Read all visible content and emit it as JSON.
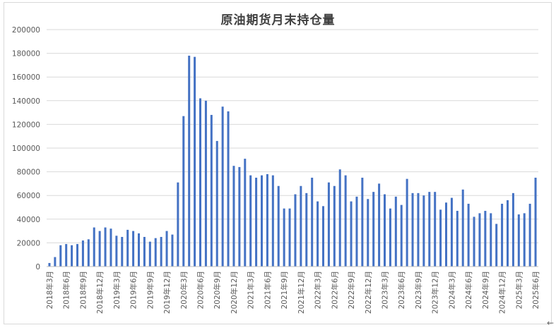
{
  "chart_data": {
    "type": "bar",
    "title": "原油期货月末持仓量",
    "xlabel": "",
    "ylabel": "",
    "ylim": [
      0,
      200000
    ],
    "yticks": [
      0,
      20000,
      40000,
      60000,
      80000,
      100000,
      120000,
      140000,
      160000,
      180000,
      200000
    ],
    "grid": true,
    "legend": "none",
    "bar_color": "#4472c4",
    "categories": [
      "2018年3月",
      "2018年4月",
      "2018年5月",
      "2018年6月",
      "2018年7月",
      "2018年8月",
      "2018年9月",
      "2018年10月",
      "2018年11月",
      "2018年12月",
      "2019年1月",
      "2019年2月",
      "2019年3月",
      "2019年4月",
      "2019年5月",
      "2019年6月",
      "2019年7月",
      "2019年8月",
      "2019年9月",
      "2019年10月",
      "2019年11月",
      "2019年12月",
      "2020年1月",
      "2020年2月",
      "2020年3月",
      "2020年4月",
      "2020年5月",
      "2020年6月",
      "2020年7月",
      "2020年8月",
      "2020年9月",
      "2020年10月",
      "2020年11月",
      "2020年12月",
      "2021年1月",
      "2021年2月",
      "2021年3月",
      "2021年4月",
      "2021年5月",
      "2021年6月",
      "2021年7月",
      "2021年8月",
      "2021年9月",
      "2021年10月",
      "2021年11月",
      "2021年12月",
      "2022年1月",
      "2022年2月",
      "2022年3月",
      "2022年4月",
      "2022年5月",
      "2022年6月",
      "2022年7月",
      "2022年8月",
      "2022年9月",
      "2022年10月",
      "2022年11月",
      "2022年12月",
      "2023年1月",
      "2023年2月",
      "2023年3月",
      "2023年4月",
      "2023年5月",
      "2023年6月",
      "2023年7月",
      "2023年8月",
      "2023年9月",
      "2023年10月",
      "2023年11月",
      "2023年12月",
      "2024年1月",
      "2024年2月",
      "2024年3月",
      "2024年4月",
      "2024年5月",
      "2024年6月",
      "2024年7月",
      "2024年8月",
      "2024年9月",
      "2024年10月",
      "2024年11月",
      "2024年12月",
      "2025年1月",
      "2025年2月",
      "2025年3月",
      "2025年4月",
      "2025年5月",
      "2025年6月"
    ],
    "tick_labels": [
      "2018年3月",
      "2018年6月",
      "2018年9月",
      "2018年12月",
      "2019年3月",
      "2019年6月",
      "2019年9月",
      "2019年12月",
      "2020年3月",
      "2020年6月",
      "2020年9月",
      "2020年12月",
      "2021年3月",
      "2021年6月",
      "2021年9月",
      "2021年12月",
      "2022年3月",
      "2022年6月",
      "2022年9月",
      "2022年12月",
      "2023年3月",
      "2023年6月",
      "2023年9月",
      "2023年12月",
      "2024年3月",
      "2024年6月",
      "2024年9月",
      "2024年12月",
      "2025年3月",
      "2025年6月"
    ],
    "values": [
      3000,
      8000,
      18000,
      19000,
      18000,
      19000,
      22000,
      23000,
      33000,
      30000,
      33000,
      32000,
      26000,
      25000,
      31000,
      30000,
      28000,
      25000,
      21000,
      24000,
      25000,
      30000,
      27000,
      71000,
      127000,
      178000,
      177000,
      142000,
      140000,
      128000,
      106000,
      135000,
      131000,
      85000,
      84000,
      91000,
      77000,
      75000,
      77000,
      78000,
      77000,
      68000,
      49000,
      49000,
      61000,
      68000,
      62000,
      75000,
      55000,
      51000,
      71000,
      68000,
      82000,
      77000,
      55000,
      59000,
      75000,
      57000,
      63000,
      70000,
      61000,
      49000,
      59000,
      52000,
      74000,
      62000,
      62000,
      60000,
      63000,
      63000,
      48000,
      54000,
      58000,
      47000,
      65000,
      53000,
      42000,
      45000,
      47000,
      45000,
      36000,
      53000,
      56000,
      62000,
      44000,
      45000,
      53000,
      75000
    ]
  }
}
